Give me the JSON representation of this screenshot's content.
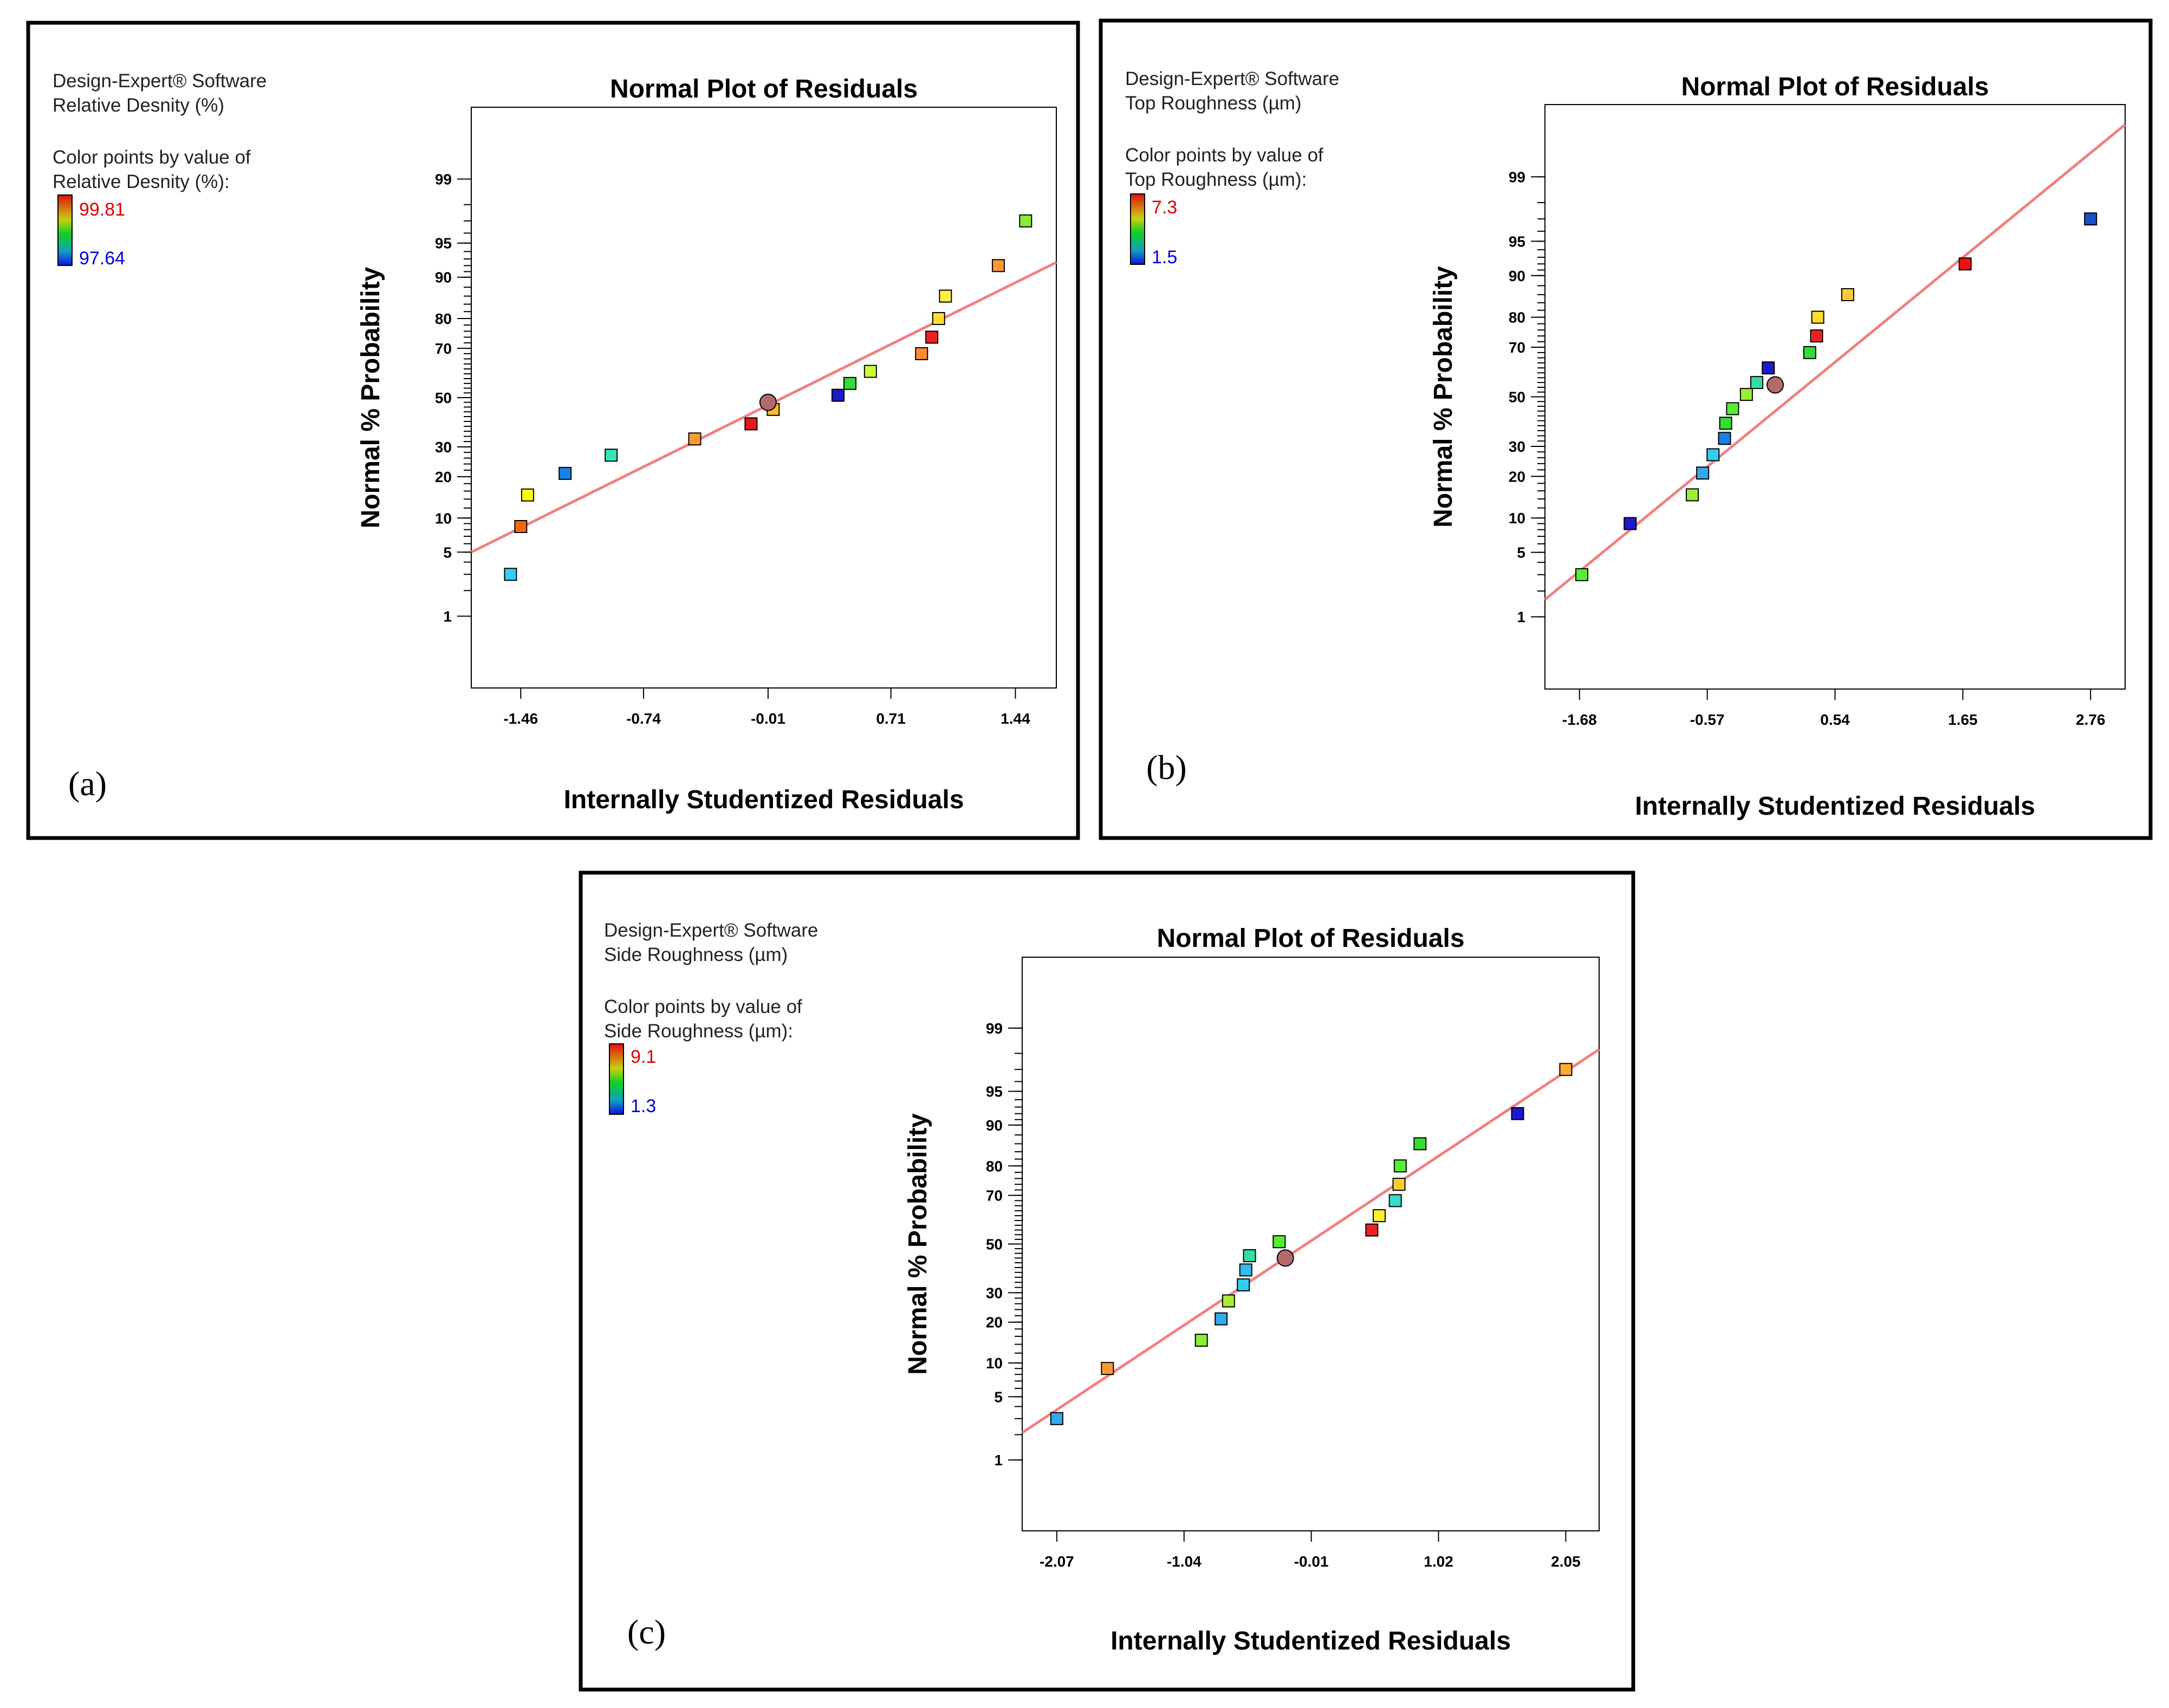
{
  "figure": {
    "panels": [
      {
        "label": "(a)",
        "software": "Design-Expert® Software",
        "response": "Relative Desnity (%)",
        "color_caption": "Color points by value of",
        "color_response": "Relative Desnity (%):",
        "color_max": "99.81",
        "color_min": "97.64"
      },
      {
        "label": "(b)",
        "software": "Design-Expert® Software",
        "response": "Top Roughness (µm)",
        "color_caption": "Color points by value of",
        "color_response": "Top Roughness (µm):",
        "color_max": "7.3",
        "color_min": "1.5"
      },
      {
        "label": "(c)",
        "software": "Design-Expert® Software",
        "response": "Side Roughness (µm)",
        "color_caption": "Color points by value of",
        "color_response": "Side Roughness (µm):",
        "color_max": "9.1",
        "color_min": "1.3"
      }
    ]
  },
  "colors": {
    "fit_line": "#f08080",
    "scale_high": "#e00000",
    "scale_low": "#0000e0",
    "center_point": "#b46a6a"
  },
  "chart_data": [
    {
      "type": "scatter",
      "title": "Normal Plot of Residuals",
      "xlabel": "Internally Studentized Residuals",
      "ylabel": "Normal % Probability",
      "xlim": [
        -1.75,
        1.68
      ],
      "x_ticks": [
        -1.46,
        -0.74,
        -0.01,
        0.71,
        1.44
      ],
      "x_tick_labels": [
        "-1.46",
        "-0.74",
        "-0.01",
        "0.71",
        "1.44"
      ],
      "y_ticks": [
        1,
        5,
        10,
        20,
        30,
        50,
        70,
        80,
        90,
        95,
        99
      ],
      "y_tick_labels": [
        "1",
        "5",
        "10",
        "20",
        "30",
        "50",
        "70",
        "80",
        "90",
        "95",
        "99"
      ],
      "ylim_probability": [
        0.1,
        99.9
      ],
      "fit_line": {
        "x": [
          -1.75,
          1.68
        ],
        "y": [
          5.0,
          92.5
        ]
      },
      "center_point": {
        "x": -0.01,
        "y": 48,
        "color": "#b46a6a"
      },
      "points": [
        {
          "x": -1.52,
          "y": 3,
          "color": "#33ccff"
        },
        {
          "x": -1.46,
          "y": 8.5,
          "color": "#ff6600"
        },
        {
          "x": -1.42,
          "y": 15,
          "color": "#ffff00"
        },
        {
          "x": -1.2,
          "y": 21,
          "color": "#1a80e6"
        },
        {
          "x": -0.93,
          "y": 27,
          "color": "#33e6b3"
        },
        {
          "x": -0.44,
          "y": 33,
          "color": "#ff9933"
        },
        {
          "x": -0.11,
          "y": 39,
          "color": "#e61a1a"
        },
        {
          "x": 0.02,
          "y": 45,
          "color": "#ffb833"
        },
        {
          "x": 0.4,
          "y": 51,
          "color": "#1a1acc"
        },
        {
          "x": 0.47,
          "y": 56,
          "color": "#33dd33"
        },
        {
          "x": 0.59,
          "y": 61,
          "color": "#ccff33"
        },
        {
          "x": 0.89,
          "y": 68,
          "color": "#ff8c33"
        },
        {
          "x": 0.95,
          "y": 74,
          "color": "#ee2222"
        },
        {
          "x": 0.99,
          "y": 80,
          "color": "#ffdd33"
        },
        {
          "x": 1.03,
          "y": 86,
          "color": "#ffee44"
        },
        {
          "x": 1.34,
          "y": 92,
          "color": "#ff9933"
        },
        {
          "x": 1.5,
          "y": 97,
          "color": "#88ee33"
        }
      ]
    },
    {
      "type": "scatter",
      "title": "Normal Plot of Residuals",
      "xlabel": "Internally Studentized Residuals",
      "ylabel": "Normal % Probability",
      "xlim": [
        -1.98,
        3.06
      ],
      "x_ticks": [
        -1.68,
        -0.57,
        0.54,
        1.65,
        2.76
      ],
      "x_tick_labels": [
        "-1.68",
        "-0.57",
        "0.54",
        "1.65",
        "2.76"
      ],
      "y_ticks": [
        1,
        5,
        10,
        20,
        30,
        50,
        70,
        80,
        90,
        95,
        99
      ],
      "y_tick_labels": [
        "1",
        "5",
        "10",
        "20",
        "30",
        "50",
        "70",
        "80",
        "90",
        "95",
        "99"
      ],
      "ylim_probability": [
        0.1,
        99.9
      ],
      "fit_line": {
        "x": [
          -1.98,
          3.06
        ],
        "y": [
          1.6,
          99.8
        ]
      },
      "center_point": {
        "x": 0.02,
        "y": 55,
        "color": "#b46a6a"
      },
      "points": [
        {
          "x": -1.66,
          "y": 3,
          "color": "#55ee33"
        },
        {
          "x": -1.24,
          "y": 9,
          "color": "#1a1acc"
        },
        {
          "x": -0.7,
          "y": 15,
          "color": "#99ee33"
        },
        {
          "x": -0.61,
          "y": 21,
          "color": "#33aaee"
        },
        {
          "x": -0.52,
          "y": 27,
          "color": "#33ccee"
        },
        {
          "x": -0.42,
          "y": 33,
          "color": "#1a80e6"
        },
        {
          "x": -0.41,
          "y": 39,
          "color": "#33dd33"
        },
        {
          "x": -0.35,
          "y": 45,
          "color": "#55ee33"
        },
        {
          "x": -0.23,
          "y": 51,
          "color": "#99ee33"
        },
        {
          "x": -0.14,
          "y": 56,
          "color": "#33ddaa"
        },
        {
          "x": -0.04,
          "y": 62,
          "color": "#1a1acc"
        },
        {
          "x": 0.32,
          "y": 68,
          "color": "#33dd33"
        },
        {
          "x": 0.38,
          "y": 74,
          "color": "#ee2222"
        },
        {
          "x": 0.39,
          "y": 80,
          "color": "#ffdd33"
        },
        {
          "x": 0.65,
          "y": 86,
          "color": "#ffcc33"
        },
        {
          "x": 1.67,
          "y": 92,
          "color": "#ee1111"
        },
        {
          "x": 2.76,
          "y": 97,
          "color": "#1a4ccc"
        }
      ]
    },
    {
      "type": "scatter",
      "title": "Normal Plot of Residuals",
      "xlabel": "Internally Studentized Residuals",
      "ylabel": "Normal % Probability",
      "xlim": [
        -2.35,
        2.32
      ],
      "x_ticks": [
        -2.07,
        -1.04,
        -0.01,
        1.02,
        2.05
      ],
      "x_tick_labels": [
        "-2.07",
        "-1.04",
        "-0.01",
        "1.02",
        "2.05"
      ],
      "y_ticks": [
        1,
        5,
        10,
        20,
        30,
        50,
        70,
        80,
        90,
        95,
        99
      ],
      "y_tick_labels": [
        "1",
        "5",
        "10",
        "20",
        "30",
        "50",
        "70",
        "80",
        "90",
        "95",
        "99"
      ],
      "ylim_probability": [
        0.1,
        99.9
      ],
      "fit_line": {
        "x": [
          -2.35,
          2.32
        ],
        "y": [
          2.1,
          98.2
        ]
      },
      "center_point": {
        "x": -0.22,
        "y": 44,
        "color": "#b46a6a"
      },
      "points": [
        {
          "x": -2.07,
          "y": 3,
          "color": "#33aaee"
        },
        {
          "x": -1.66,
          "y": 9,
          "color": "#ff9933"
        },
        {
          "x": -0.9,
          "y": 15,
          "color": "#88ee33"
        },
        {
          "x": -0.74,
          "y": 21,
          "color": "#33aaee"
        },
        {
          "x": -0.68,
          "y": 27,
          "color": "#aaee33"
        },
        {
          "x": -0.56,
          "y": 33,
          "color": "#33ccee"
        },
        {
          "x": -0.54,
          "y": 39,
          "color": "#33bbee"
        },
        {
          "x": -0.51,
          "y": 45,
          "color": "#33ddaa"
        },
        {
          "x": -0.27,
          "y": 51,
          "color": "#55ee33"
        },
        {
          "x": 0.48,
          "y": 56,
          "color": "#ee2222"
        },
        {
          "x": 0.54,
          "y": 62,
          "color": "#ffee33"
        },
        {
          "x": 0.67,
          "y": 68,
          "color": "#33ddcc"
        },
        {
          "x": 0.7,
          "y": 74,
          "color": "#ffcc33"
        },
        {
          "x": 0.71,
          "y": 80,
          "color": "#55ee33"
        },
        {
          "x": 0.87,
          "y": 86,
          "color": "#33dd33"
        },
        {
          "x": 1.66,
          "y": 92,
          "color": "#1a1acc"
        },
        {
          "x": 2.05,
          "y": 97,
          "color": "#ffaa33"
        }
      ]
    }
  ]
}
